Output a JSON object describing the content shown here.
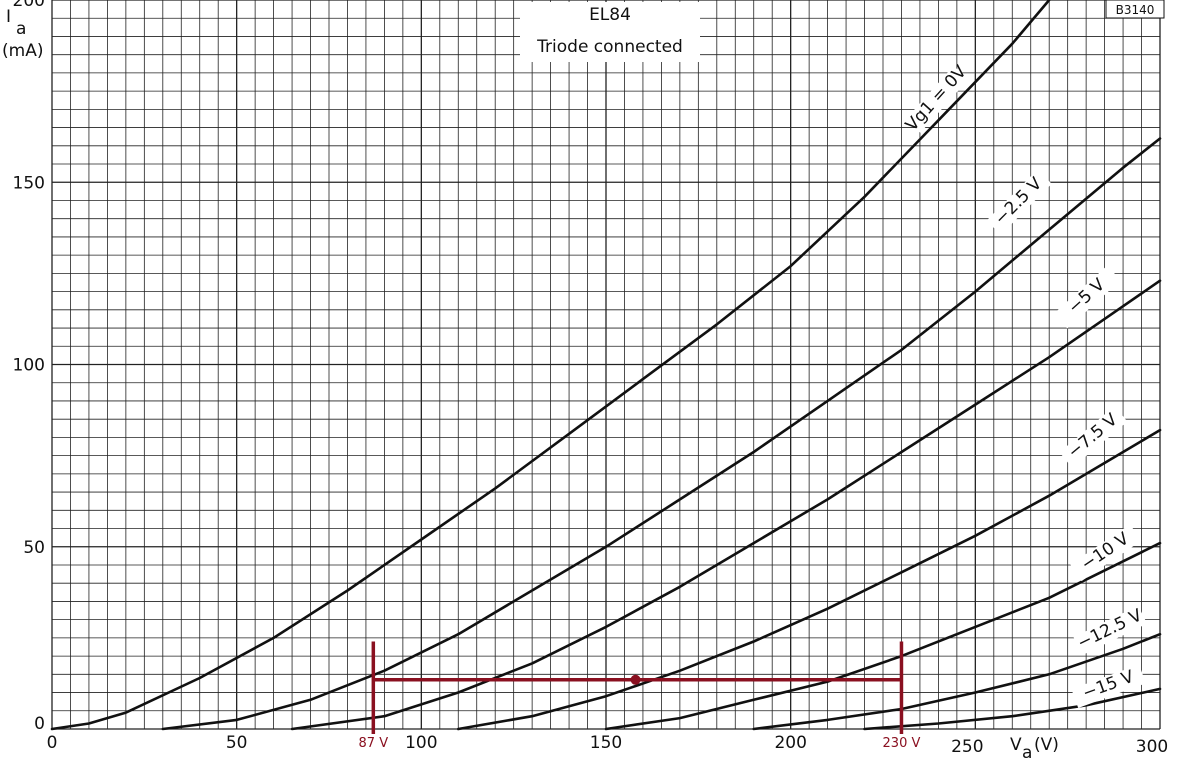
{
  "chart_data": {
    "type": "line",
    "title": "EL84",
    "subtitle": "Triode connected",
    "code": "B3140",
    "xlabel": "V",
    "xlabel_sub": "a",
    "xlabel_unit": "(V)",
    "ylabel": "I",
    "ylabel_sub": "a",
    "ylabel_unit": "(mA)",
    "xlim": [
      0,
      300
    ],
    "ylim": [
      0,
      200
    ],
    "grid": true,
    "x_ticks": [
      0,
      50,
      100,
      150,
      200,
      250,
      300
    ],
    "y_ticks": [
      0,
      50,
      100,
      150,
      200
    ],
    "series": [
      {
        "name": "Vg1 = 0V",
        "x": [
          0,
          10,
          20,
          40,
          60,
          80,
          100,
          120,
          140,
          160,
          180,
          200,
          220,
          240,
          260,
          270
        ],
        "y": [
          0,
          1.5,
          4.5,
          14,
          25,
          38,
          52,
          66,
          81,
          96,
          111,
          127,
          146,
          167,
          188,
          200
        ]
      },
      {
        "name": "−2.5 V",
        "x": [
          30,
          50,
          70,
          90,
          110,
          130,
          150,
          170,
          190,
          210,
          230,
          250,
          270,
          290,
          300
        ],
        "y": [
          0,
          2.5,
          8,
          16,
          26,
          38,
          50,
          63,
          76,
          90,
          104,
          120,
          137,
          154,
          162
        ]
      },
      {
        "name": "−5 V",
        "x": [
          65,
          90,
          110,
          130,
          150,
          170,
          190,
          210,
          230,
          250,
          270,
          290,
          300
        ],
        "y": [
          0,
          3.5,
          10,
          18,
          28,
          39,
          51,
          63,
          76,
          89,
          102,
          116,
          123
        ]
      },
      {
        "name": "−7.5 V",
        "x": [
          110,
          130,
          150,
          170,
          190,
          210,
          230,
          250,
          270,
          290,
          300
        ],
        "y": [
          0,
          3.5,
          9,
          16,
          24,
          33,
          43,
          53,
          64,
          76,
          82
        ]
      },
      {
        "name": "−10 V",
        "x": [
          150,
          170,
          190,
          210,
          230,
          250,
          270,
          290,
          300
        ],
        "y": [
          0,
          3,
          8,
          13,
          20,
          28,
          36,
          46,
          51
        ]
      },
      {
        "name": "−12.5 V",
        "x": [
          190,
          210,
          230,
          250,
          270,
          290,
          300
        ],
        "y": [
          0,
          2.5,
          5.5,
          10,
          15,
          22,
          26
        ]
      },
      {
        "name": "−15 V",
        "x": [
          220,
          240,
          260,
          280,
          300
        ],
        "y": [
          0,
          1.5,
          3.5,
          6.5,
          11
        ]
      }
    ],
    "annotations": {
      "left_marker": {
        "x": 87,
        "label": "87 V"
      },
      "right_marker": {
        "x": 230,
        "label": "230 V"
      },
      "marker_y_range": [
        -3,
        24
      ],
      "load_line_y": 13.5,
      "operating_point": {
        "x": 158,
        "y": 13.5
      },
      "color": "#8a1020"
    },
    "colors": {
      "curve": "#111111",
      "grid": "#222222",
      "annotation": "#8a1020"
    }
  }
}
